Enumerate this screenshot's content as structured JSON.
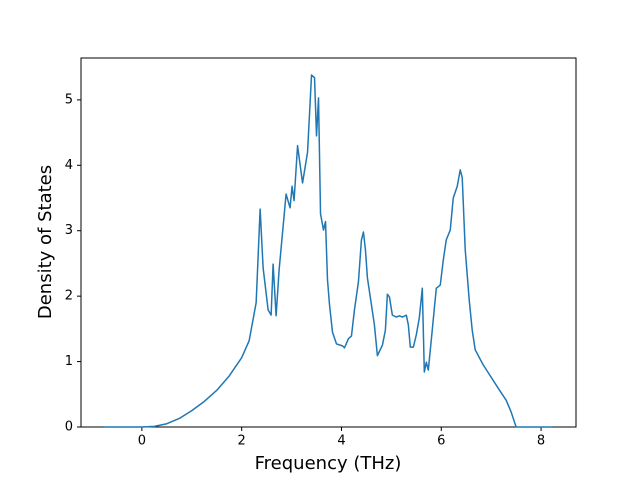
{
  "chart_data": {
    "type": "line",
    "xlabel": "Frequency (THz)",
    "ylabel": "Density of States",
    "color": "#1f77b4",
    "x": [
      -0.77,
      0,
      0.25,
      0.5,
      0.75,
      1,
      1.25,
      1.5,
      1.75,
      2,
      2.15,
      2.29,
      2.37,
      2.43,
      2.53,
      2.59,
      2.63,
      2.69,
      2.75,
      2.89,
      2.97,
      3.01,
      3.05,
      3.12,
      3.22,
      3.32,
      3.4,
      3.46,
      3.5,
      3.54,
      3.58,
      3.64,
      3.68,
      3.72,
      3.76,
      3.82,
      3.9,
      4.02,
      4.06,
      4.14,
      4.2,
      4.26,
      4.34,
      4.4,
      4.44,
      4.48,
      4.52,
      4.6,
      4.66,
      4.72,
      4.82,
      4.88,
      4.92,
      4.96,
      5.02,
      5.1,
      5.16,
      5.22,
      5.3,
      5.34,
      5.38,
      5.44,
      5.5,
      5.56,
      5.62,
      5.66,
      5.7,
      5.74,
      5.8,
      5.9,
      5.98,
      6.04,
      6.1,
      6.18,
      6.24,
      6.32,
      6.38,
      6.42,
      6.48,
      6.56,
      6.62,
      6.68,
      6.84,
      7.0,
      7.16,
      7.3,
      7.4,
      7.5,
      8.23
    ],
    "values": [
      0,
      0,
      0.01,
      0.05,
      0.13,
      0.25,
      0.39,
      0.56,
      0.78,
      1.06,
      1.32,
      1.9,
      3.33,
      2.43,
      1.79,
      1.71,
      2.49,
      1.7,
      2.4,
      3.56,
      3.35,
      3.68,
      3.46,
      4.3,
      3.73,
      4.2,
      5.38,
      5.34,
      4.45,
      5.03,
      3.26,
      3.01,
      3.14,
      2.25,
      1.87,
      1.45,
      1.27,
      1.24,
      1.21,
      1.35,
      1.39,
      1.79,
      2.22,
      2.86,
      2.98,
      2.71,
      2.28,
      1.87,
      1.56,
      1.09,
      1.25,
      1.48,
      2.03,
      1.99,
      1.71,
      1.68,
      1.7,
      1.68,
      1.71,
      1.56,
      1.22,
      1.22,
      1.41,
      1.67,
      2.12,
      0.84,
      0.99,
      0.87,
      1.33,
      2.12,
      2.17,
      2.55,
      2.86,
      3.01,
      3.5,
      3.68,
      3.93,
      3.81,
      2.71,
      1.94,
      1.48,
      1.18,
      0.95,
      0.76,
      0.57,
      0.41,
      0.23,
      0,
      0
    ],
    "xlim": [
      -1.22,
      8.7
    ],
    "xticks": [
      0,
      2,
      4,
      6,
      8
    ],
    "ylim": [
      0,
      5.64
    ],
    "yticks": [
      0,
      1,
      2,
      3,
      4,
      5
    ]
  }
}
